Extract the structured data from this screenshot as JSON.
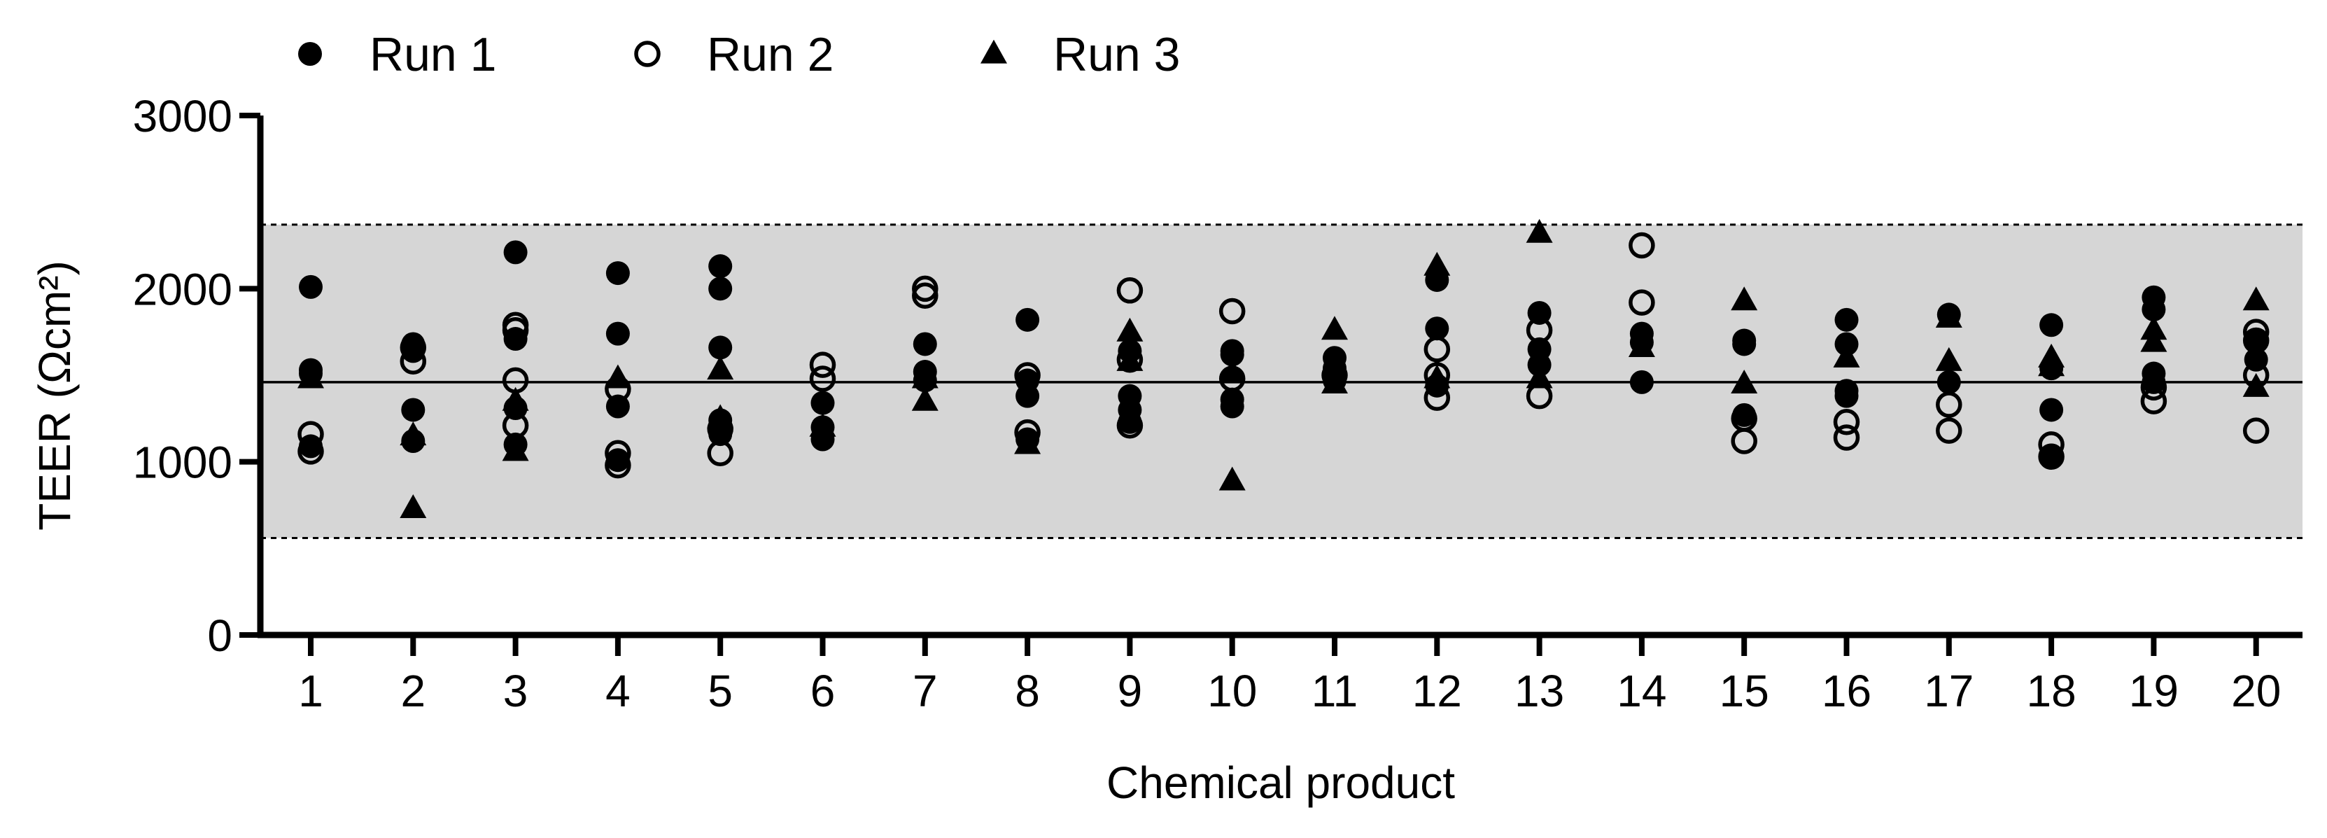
{
  "chart_data": {
    "type": "scatter",
    "xlabel": "Chemical product",
    "ylabel": "TEER (Ωcm²)",
    "ylim": [
      0,
      3000
    ],
    "yticks": [
      0,
      1000,
      2000,
      3000
    ],
    "categories": [
      "1",
      "2",
      "3",
      "4",
      "5",
      "6",
      "7",
      "8",
      "9",
      "10",
      "11",
      "12",
      "13",
      "14",
      "15",
      "16",
      "17",
      "18",
      "19",
      "20"
    ],
    "legend_position": "top-left",
    "grid": false,
    "reference_lines": {
      "mean": 1460,
      "lower_limit": 560,
      "upper_limit": 2370
    },
    "series": [
      {
        "name": "Run 1",
        "marker": "filled-circle",
        "color": "#000000",
        "points": [
          [
            1,
            2010
          ],
          [
            1,
            1530
          ],
          [
            1,
            1510
          ],
          [
            1,
            1090
          ],
          [
            2,
            1680
          ],
          [
            2,
            1640
          ],
          [
            2,
            1300
          ],
          [
            2,
            1120
          ],
          [
            3,
            2210
          ],
          [
            3,
            1710
          ],
          [
            3,
            1310
          ],
          [
            3,
            1100
          ],
          [
            4,
            2090
          ],
          [
            4,
            1740
          ],
          [
            4,
            1320
          ],
          [
            4,
            1010
          ],
          [
            5,
            2130
          ],
          [
            5,
            2000
          ],
          [
            5,
            1660
          ],
          [
            5,
            1240
          ],
          [
            5,
            1160
          ],
          [
            6,
            1340
          ],
          [
            6,
            1200
          ],
          [
            6,
            1130
          ],
          [
            7,
            1680
          ],
          [
            7,
            1520
          ],
          [
            7,
            1470
          ],
          [
            8,
            1820
          ],
          [
            8,
            1470
          ],
          [
            8,
            1380
          ],
          [
            8,
            1130
          ],
          [
            9,
            1640
          ],
          [
            9,
            1380
          ],
          [
            9,
            1300
          ],
          [
            9,
            1230
          ],
          [
            10,
            1640
          ],
          [
            10,
            1620
          ],
          [
            10,
            1360
          ],
          [
            10,
            1320
          ],
          [
            11,
            1600
          ],
          [
            11,
            1540
          ],
          [
            11,
            1470
          ],
          [
            12,
            2050
          ],
          [
            12,
            1770
          ],
          [
            12,
            1440
          ],
          [
            13,
            1860
          ],
          [
            13,
            1650
          ],
          [
            13,
            1560
          ],
          [
            14,
            1740
          ],
          [
            14,
            1690
          ],
          [
            14,
            1460
          ],
          [
            15,
            1700
          ],
          [
            15,
            1680
          ],
          [
            15,
            1270
          ],
          [
            16,
            1820
          ],
          [
            16,
            1680
          ],
          [
            16,
            1410
          ],
          [
            16,
            1380
          ],
          [
            17,
            1850
          ],
          [
            17,
            1460
          ],
          [
            18,
            1790
          ],
          [
            18,
            1540
          ],
          [
            18,
            1300
          ],
          [
            18,
            1030
          ],
          [
            19,
            1950
          ],
          [
            19,
            1880
          ],
          [
            19,
            1510
          ],
          [
            19,
            1460
          ],
          [
            20,
            1700
          ],
          [
            20,
            1590
          ]
        ]
      },
      {
        "name": "Run 2",
        "marker": "open-circle",
        "color": "#000000",
        "points": [
          [
            1,
            1160
          ],
          [
            1,
            1060
          ],
          [
            2,
            1660
          ],
          [
            2,
            1580
          ],
          [
            3,
            1790
          ],
          [
            3,
            1760
          ],
          [
            3,
            1470
          ],
          [
            3,
            1210
          ],
          [
            4,
            1420
          ],
          [
            4,
            1050
          ],
          [
            4,
            980
          ],
          [
            5,
            1190
          ],
          [
            5,
            1050
          ],
          [
            6,
            1560
          ],
          [
            6,
            1480
          ],
          [
            7,
            2000
          ],
          [
            7,
            1960
          ],
          [
            8,
            1500
          ],
          [
            8,
            1170
          ],
          [
            9,
            1990
          ],
          [
            9,
            1590
          ],
          [
            9,
            1210
          ],
          [
            10,
            1870
          ],
          [
            10,
            1480
          ],
          [
            11,
            1500
          ],
          [
            12,
            1650
          ],
          [
            12,
            1500
          ],
          [
            12,
            1370
          ],
          [
            13,
            1760
          ],
          [
            13,
            1380
          ],
          [
            14,
            2250
          ],
          [
            14,
            1920
          ],
          [
            15,
            1250
          ],
          [
            15,
            1120
          ],
          [
            16,
            1230
          ],
          [
            16,
            1140
          ],
          [
            17,
            1330
          ],
          [
            17,
            1180
          ],
          [
            18,
            1100
          ],
          [
            18,
            1030
          ],
          [
            19,
            1430
          ],
          [
            19,
            1350
          ],
          [
            20,
            1750
          ],
          [
            20,
            1700
          ],
          [
            20,
            1500
          ],
          [
            20,
            1180
          ]
        ]
      },
      {
        "name": "Run 3",
        "marker": "filled-triangle",
        "color": "#000000",
        "points": [
          [
            1,
            1480
          ],
          [
            2,
            1150
          ],
          [
            2,
            730
          ],
          [
            3,
            1350
          ],
          [
            3,
            1060
          ],
          [
            4,
            1480
          ],
          [
            5,
            1530
          ],
          [
            5,
            1250
          ],
          [
            6,
            1200
          ],
          [
            7,
            1480
          ],
          [
            7,
            1350
          ],
          [
            8,
            1100
          ],
          [
            9,
            1750
          ],
          [
            9,
            1580
          ],
          [
            10,
            1510
          ],
          [
            10,
            890
          ],
          [
            11,
            1760
          ],
          [
            11,
            1450
          ],
          [
            12,
            2130
          ],
          [
            12,
            1480
          ],
          [
            13,
            2320
          ],
          [
            13,
            1480
          ],
          [
            14,
            1660
          ],
          [
            15,
            1930
          ],
          [
            15,
            1450
          ],
          [
            16,
            1600
          ],
          [
            17,
            1830
          ],
          [
            17,
            1580
          ],
          [
            18,
            1600
          ],
          [
            18,
            1550
          ],
          [
            19,
            1760
          ],
          [
            19,
            1690
          ],
          [
            20,
            1930
          ],
          [
            20,
            1430
          ]
        ]
      }
    ]
  }
}
